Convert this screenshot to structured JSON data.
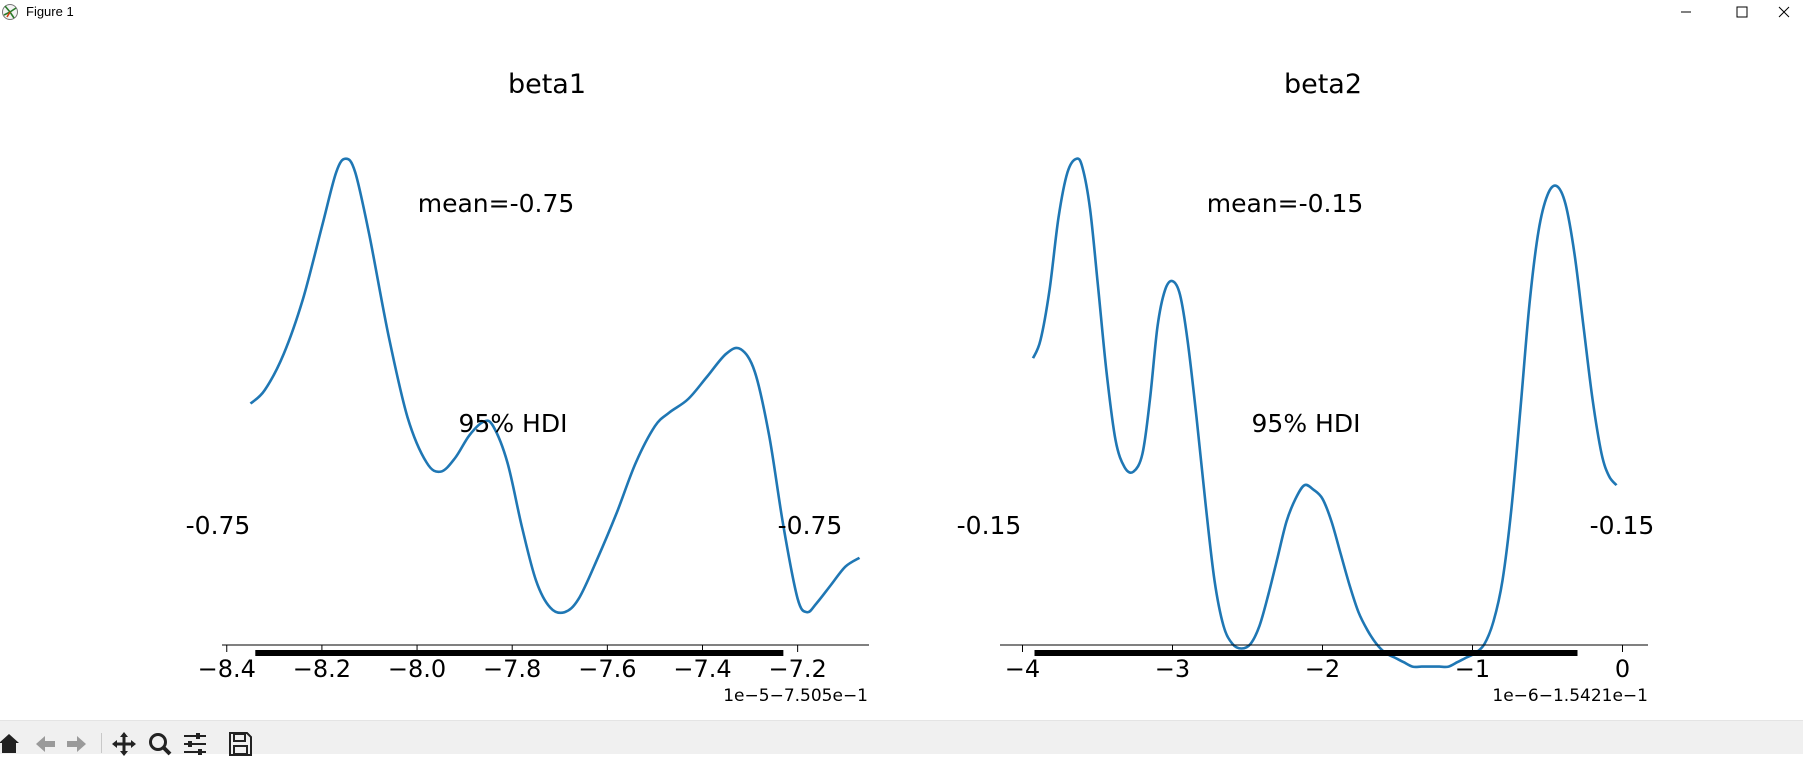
{
  "window": {
    "title": "Figure 1",
    "controls": [
      "minimize-icon",
      "maximize-icon",
      "close-icon"
    ]
  },
  "toolbar": {
    "buttons": [
      "home-icon",
      "back-icon",
      "forward-icon",
      "pan-icon",
      "zoom-icon",
      "configure-subplots-icon",
      "save-icon"
    ]
  },
  "colors": {
    "line": "#1f77b4",
    "hdi": "#000000",
    "toolbar_bg": "#f0f0f0"
  },
  "chart_data": [
    {
      "type": "line",
      "title": "beta1",
      "mean_label": "mean=-0.75",
      "hdi_label": "95% HDI",
      "hdi_low_label": "-0.75",
      "hdi_high_label": "-0.75",
      "offset_label": "1e−5−7.505e−1",
      "xlim": [
        -8.41,
        -7.05
      ],
      "ylim": [
        0,
        1.14
      ],
      "xticks": [
        -8.4,
        -8.2,
        -8.0,
        -7.8,
        -7.6,
        -7.4,
        -7.2
      ],
      "xtick_labels": [
        "−8.4",
        "−8.2",
        "−8.0",
        "−7.8",
        "−7.6",
        "−7.4",
        "−7.2"
      ],
      "hdi": [
        -8.34,
        -7.23
      ],
      "series": [
        {
          "x": [
            -8.35,
            -8.32,
            -8.28,
            -8.24,
            -8.2,
            -8.17,
            -8.15,
            -8.13,
            -8.1,
            -8.06,
            -8.02,
            -7.98,
            -7.95,
            -7.92,
            -7.89,
            -7.86,
            -7.84,
            -7.81,
            -7.78,
            -7.75,
            -7.72,
            -7.69,
            -7.66,
            -7.62,
            -7.58,
            -7.54,
            -7.5,
            -7.47,
            -7.43,
            -7.39,
            -7.35,
            -7.32,
            -7.29,
            -7.26,
            -7.23,
            -7.2,
            -7.18,
            -7.16,
            -7.13,
            -7.1,
            -7.07
          ],
          "y": [
            0.55,
            0.58,
            0.66,
            0.78,
            0.94,
            1.06,
            1.09,
            1.06,
            0.92,
            0.7,
            0.52,
            0.42,
            0.4,
            0.43,
            0.48,
            0.51,
            0.5,
            0.42,
            0.28,
            0.16,
            0.1,
            0.09,
            0.12,
            0.21,
            0.31,
            0.42,
            0.5,
            0.53,
            0.56,
            0.61,
            0.66,
            0.67,
            0.62,
            0.48,
            0.28,
            0.12,
            0.09,
            0.11,
            0.15,
            0.19,
            0.21
          ]
        }
      ]
    },
    {
      "type": "line",
      "title": "beta2",
      "mean_label": "mean=-0.15",
      "hdi_label": "95% HDI",
      "hdi_low_label": "-0.15",
      "hdi_high_label": "-0.15",
      "offset_label": "1e−6−1.5421e−1",
      "xlim": [
        -4.15,
        0.17
      ],
      "ylim": [
        0,
        1.14
      ],
      "xticks": [
        -4,
        -3,
        -2,
        -1,
        0
      ],
      "xtick_labels": [
        "−4",
        "−3",
        "−2",
        "−1",
        "0"
      ],
      "hdi": [
        -3.92,
        -0.3
      ],
      "series": [
        {
          "x": [
            -3.93,
            -3.88,
            -3.82,
            -3.76,
            -3.7,
            -3.64,
            -3.6,
            -3.55,
            -3.5,
            -3.44,
            -3.38,
            -3.32,
            -3.26,
            -3.2,
            -3.15,
            -3.1,
            -3.05,
            -3.0,
            -2.95,
            -2.9,
            -2.84,
            -2.78,
            -2.72,
            -2.66,
            -2.6,
            -2.54,
            -2.48,
            -2.42,
            -2.36,
            -2.3,
            -2.24,
            -2.18,
            -2.12,
            -2.06,
            -2.0,
            -1.94,
            -1.88,
            -1.82,
            -1.76,
            -1.7,
            -1.64,
            -1.58,
            -1.52,
            -1.46,
            -1.4,
            -1.34,
            -1.28,
            -1.22,
            -1.16,
            -1.1,
            -1.04,
            -0.98,
            -0.92,
            -0.86,
            -0.8,
            -0.74,
            -0.68,
            -0.62,
            -0.56,
            -0.5,
            -0.44,
            -0.38,
            -0.32,
            -0.26,
            -0.2,
            -0.14,
            -0.09,
            -0.04
          ],
          "y": [
            0.65,
            0.69,
            0.8,
            0.96,
            1.06,
            1.09,
            1.07,
            0.98,
            0.82,
            0.62,
            0.47,
            0.41,
            0.4,
            0.44,
            0.56,
            0.72,
            0.8,
            0.82,
            0.79,
            0.69,
            0.52,
            0.33,
            0.16,
            0.06,
            0.02,
            0.01,
            0.02,
            0.06,
            0.13,
            0.21,
            0.29,
            0.34,
            0.37,
            0.36,
            0.34,
            0.29,
            0.22,
            0.15,
            0.09,
            0.05,
            0.02,
            0.0,
            -0.01,
            -0.02,
            -0.03,
            -0.03,
            -0.03,
            -0.03,
            -0.03,
            -0.02,
            -0.01,
            0.0,
            0.02,
            0.07,
            0.16,
            0.32,
            0.54,
            0.77,
            0.93,
            1.01,
            1.03,
            0.99,
            0.88,
            0.72,
            0.56,
            0.44,
            0.39,
            0.37
          ]
        }
      ]
    }
  ]
}
